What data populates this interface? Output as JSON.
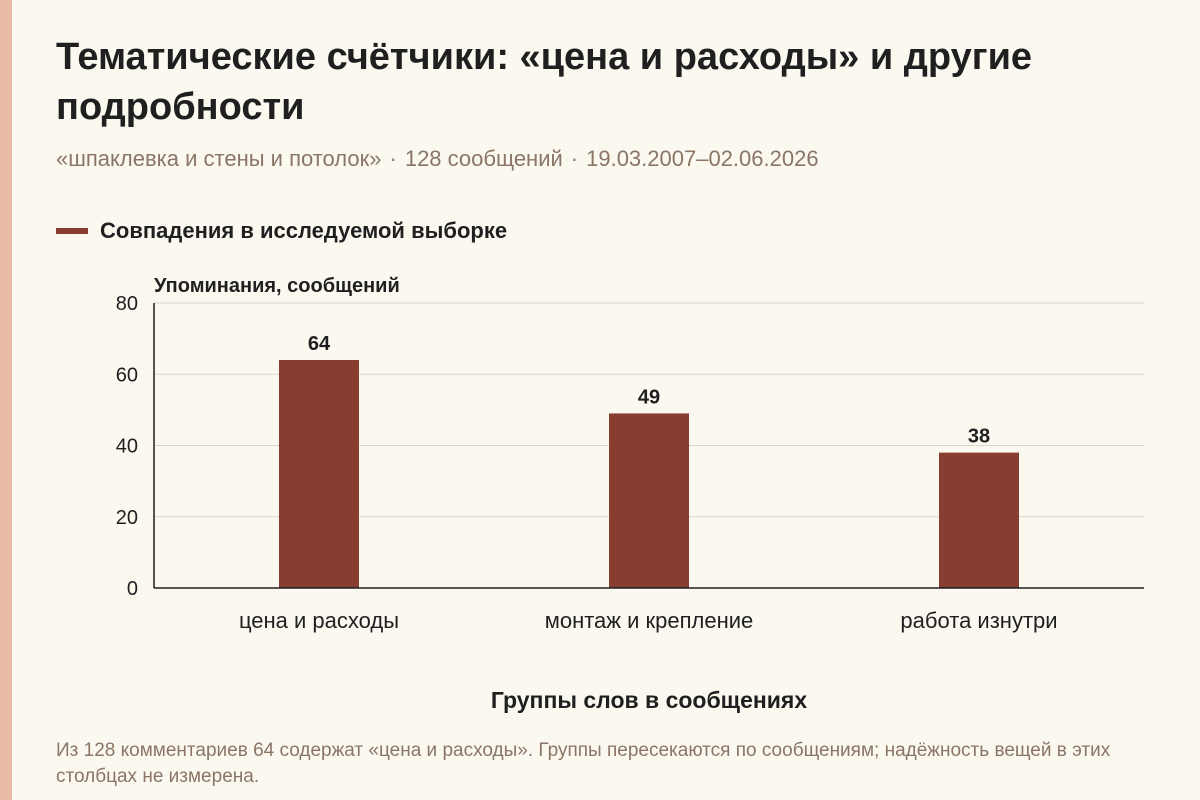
{
  "title": "Тематические счётчики: «цена и расходы» и другие подробности",
  "subtitle": {
    "query": "«шпаклевка и стены и потолок»",
    "count": "128 сообщений",
    "date_range": "19.03.2007–02.06.2026",
    "separator": "·"
  },
  "colors": {
    "bar": "#873d2f",
    "accent_strip": "#e8bba5",
    "background": "#fbf8f0",
    "muted_text": "#8a7566"
  },
  "chart_data": {
    "type": "bar",
    "categories": [
      "цена и расходы",
      "монтаж и крепление",
      "работа изнутри"
    ],
    "series": [
      {
        "name": "Совпадения в исследуемой выборке",
        "values": [
          64,
          49,
          38
        ]
      }
    ],
    "ylabel": "Упоминания, сообщений",
    "xlabel": "Группы слов в сообщениях",
    "ylim": [
      0,
      80
    ],
    "yticks": [
      0,
      20,
      40,
      60,
      80
    ],
    "grid": true,
    "legend": "top-left"
  },
  "footnote": "Из 128 комментариев 64 содержат «цена и расходы». Группы пересекаются по сообщениям; надёжность вещей в этих столбцах не измерена."
}
